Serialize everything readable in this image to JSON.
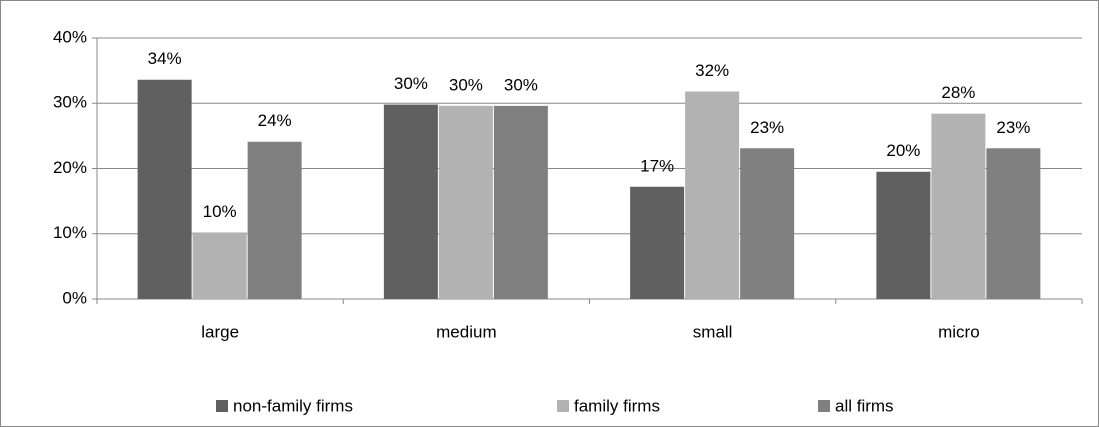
{
  "chart_data": {
    "type": "bar",
    "categories": [
      "large",
      "medium",
      "small",
      "micro"
    ],
    "series": [
      {
        "name": "non-family firms",
        "color": "#606060",
        "values": [
          33.6,
          29.8,
          17.2,
          19.5
        ],
        "value_labels": [
          "34%",
          "30%",
          "17%",
          "20%"
        ]
      },
      {
        "name": "family firms",
        "color": "#b2b2b2",
        "values": [
          10.2,
          29.6,
          31.8,
          28.4
        ],
        "value_labels": [
          "10%",
          "30%",
          "32%",
          "28%"
        ]
      },
      {
        "name": "all firms",
        "color": "#808080",
        "values": [
          24.1,
          29.6,
          23.1,
          23.1
        ],
        "value_labels": [
          "24%",
          "30%",
          "23%",
          "23%"
        ]
      }
    ],
    "ylim": [
      0,
      40
    ],
    "yticks": [
      {
        "value": 0,
        "label": "0%"
      },
      {
        "value": 10,
        "label": "10%"
      },
      {
        "value": 20,
        "label": "20%"
      },
      {
        "value": 30,
        "label": "30%"
      },
      {
        "value": 40,
        "label": "40%"
      }
    ],
    "grid": true,
    "legend": "bottom"
  }
}
